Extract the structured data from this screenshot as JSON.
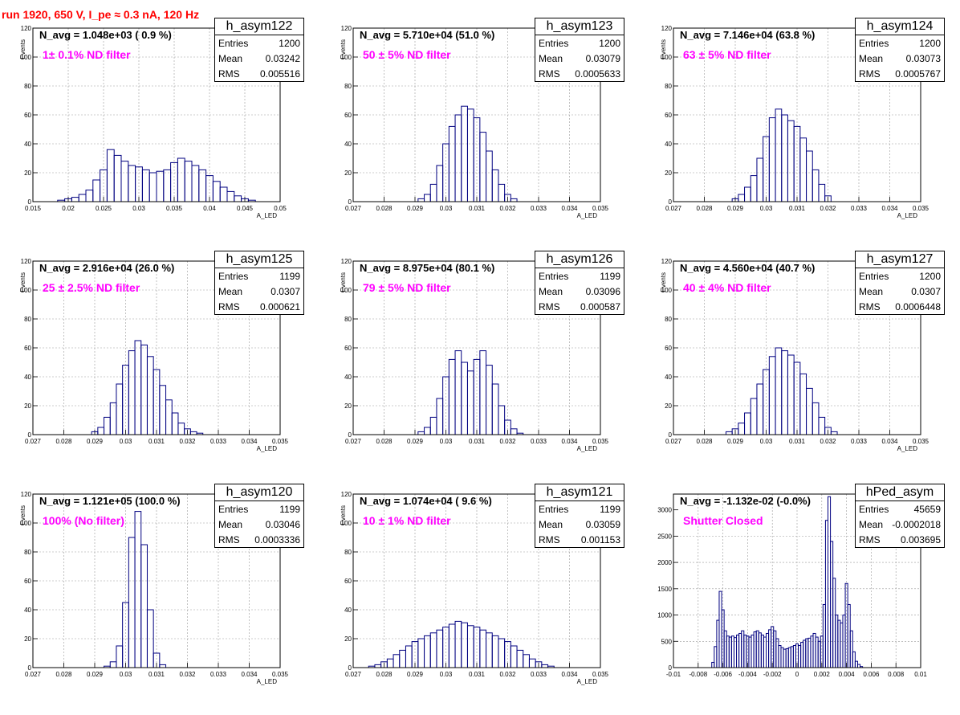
{
  "title": "run 1920,   650 V, I_pe ≈ 0.3 nA, 120 Hz",
  "stat_labels": {
    "entries": "Entries",
    "mean": "Mean",
    "rms": "RMS"
  },
  "colors": {
    "histogram": "#000080",
    "annotation": "#ff00ff",
    "title": "#ff0000",
    "grid": "#999999"
  },
  "panels": [
    {
      "hist_name": "h_asym122",
      "navg": "N_avg = 1.048e+03 ( 0.9 %)",
      "note": "1± 0.1% ND filter",
      "entries": "1200",
      "mean": "0.03242",
      "rms": "0.005516",
      "chart_data": {
        "type": "histogram",
        "title": "h_asym122",
        "xlabel": "A_LED",
        "ylabel": "Events",
        "xlim": [
          0.015,
          0.05
        ],
        "ylim": [
          0,
          120
        ],
        "grid": true,
        "x_ticks": [
          "0.015",
          "0.02",
          "0.025",
          "0.03",
          "0.035",
          "0.04",
          "0.045",
          "0.05"
        ],
        "y_ticks": [
          "0",
          "20",
          "40",
          "60",
          "80",
          "100",
          "120"
        ],
        "bin_centers": [
          0.019,
          0.02,
          0.021,
          0.022,
          0.023,
          0.024,
          0.025,
          0.026,
          0.027,
          0.028,
          0.029,
          0.03,
          0.031,
          0.032,
          0.033,
          0.034,
          0.035,
          0.036,
          0.037,
          0.038,
          0.039,
          0.04,
          0.041,
          0.042,
          0.043,
          0.044,
          0.045,
          0.046
        ],
        "values": [
          1,
          2,
          3,
          5,
          8,
          15,
          22,
          36,
          32,
          28,
          25,
          24,
          22,
          20,
          21,
          22,
          27,
          30,
          28,
          25,
          22,
          18,
          14,
          10,
          7,
          4,
          2,
          1
        ]
      }
    },
    {
      "hist_name": "h_asym123",
      "navg": "N_avg = 5.710e+04 (51.0 %)",
      "note": "50 ± 5% ND filter",
      "entries": "1200",
      "mean": "0.03079",
      "rms": "0.0005633",
      "chart_data": {
        "type": "histogram",
        "title": "h_asym123",
        "xlabel": "A_LED",
        "ylabel": "Events",
        "xlim": [
          0.027,
          0.035
        ],
        "ylim": [
          0,
          120
        ],
        "grid": true,
        "x_ticks": [
          "0.027",
          "0.028",
          "0.029",
          "0.03",
          "0.031",
          "0.032",
          "0.033",
          "0.034",
          "0.035"
        ],
        "y_ticks": [
          "0",
          "20",
          "40",
          "60",
          "80",
          "100",
          "120"
        ],
        "bin_centers": [
          0.0292,
          0.0294,
          0.0296,
          0.0298,
          0.03,
          0.0302,
          0.0304,
          0.0306,
          0.0308,
          0.031,
          0.0312,
          0.0314,
          0.0316,
          0.0318,
          0.032,
          0.0322
        ],
        "values": [
          2,
          5,
          12,
          25,
          40,
          52,
          60,
          66,
          64,
          58,
          48,
          35,
          22,
          12,
          5,
          2
        ]
      }
    },
    {
      "hist_name": "h_asym124",
      "navg": "N_avg = 7.146e+04 (63.8 %)",
      "note": "63 ± 5% ND filter",
      "entries": "1200",
      "mean": "0.03073",
      "rms": "0.0005767",
      "chart_data": {
        "type": "histogram",
        "title": "h_asym124",
        "xlabel": "A_LED",
        "ylabel": "Events",
        "xlim": [
          0.027,
          0.035
        ],
        "ylim": [
          0,
          120
        ],
        "grid": true,
        "x_ticks": [
          "0.027",
          "0.028",
          "0.029",
          "0.03",
          "0.031",
          "0.032",
          "0.033",
          "0.034",
          "0.035"
        ],
        "y_ticks": [
          "0",
          "20",
          "40",
          "60",
          "80",
          "100",
          "120"
        ],
        "bin_centers": [
          0.029,
          0.0292,
          0.0294,
          0.0296,
          0.0298,
          0.03,
          0.0302,
          0.0304,
          0.0306,
          0.0308,
          0.031,
          0.0312,
          0.0314,
          0.0316,
          0.0318,
          0.032
        ],
        "values": [
          2,
          5,
          10,
          18,
          30,
          45,
          58,
          64,
          60,
          56,
          52,
          44,
          35,
          22,
          12,
          4
        ]
      }
    },
    {
      "hist_name": "h_asym125",
      "navg": "N_avg = 2.916e+04 (26.0 %)",
      "note": "25 ± 2.5% ND filter",
      "entries": "1199",
      "mean": "0.0307",
      "rms": "0.000621",
      "chart_data": {
        "type": "histogram",
        "title": "h_asym125",
        "xlabel": "A_LED",
        "ylabel": "Events",
        "xlim": [
          0.027,
          0.035
        ],
        "ylim": [
          0,
          120
        ],
        "grid": true,
        "x_ticks": [
          "0.027",
          "0.028",
          "0.029",
          "0.03",
          "0.031",
          "0.032",
          "0.033",
          "0.034",
          "0.035"
        ],
        "y_ticks": [
          "0",
          "20",
          "40",
          "60",
          "80",
          "100",
          "120"
        ],
        "bin_centers": [
          0.029,
          0.0292,
          0.0294,
          0.0296,
          0.0298,
          0.03,
          0.0302,
          0.0304,
          0.0306,
          0.0308,
          0.031,
          0.0312,
          0.0314,
          0.0316,
          0.0318,
          0.032,
          0.0322,
          0.0324
        ],
        "values": [
          2,
          5,
          12,
          22,
          35,
          48,
          58,
          65,
          62,
          54,
          45,
          34,
          24,
          15,
          8,
          4,
          2,
          1
        ]
      }
    },
    {
      "hist_name": "h_asym126",
      "navg": "N_avg = 8.975e+04 (80.1 %)",
      "note": "79 ± 5% ND filter",
      "entries": "1199",
      "mean": "0.03096",
      "rms": "0.000587",
      "chart_data": {
        "type": "histogram",
        "title": "h_asym126",
        "xlabel": "A_LED",
        "ylabel": "Events",
        "xlim": [
          0.027,
          0.035
        ],
        "ylim": [
          0,
          120
        ],
        "grid": true,
        "x_ticks": [
          "0.027",
          "0.028",
          "0.029",
          "0.03",
          "0.031",
          "0.032",
          "0.033",
          "0.034",
          "0.035"
        ],
        "y_ticks": [
          "0",
          "20",
          "40",
          "60",
          "80",
          "100",
          "120"
        ],
        "bin_centers": [
          0.0292,
          0.0294,
          0.0296,
          0.0298,
          0.03,
          0.0302,
          0.0304,
          0.0306,
          0.0308,
          0.031,
          0.0312,
          0.0314,
          0.0316,
          0.0318,
          0.032,
          0.0322,
          0.0324
        ],
        "values": [
          2,
          5,
          12,
          25,
          40,
          52,
          58,
          50,
          44,
          52,
          58,
          48,
          35,
          20,
          10,
          4,
          1
        ]
      }
    },
    {
      "hist_name": "h_asym127",
      "navg": "N_avg = 4.560e+04 (40.7 %)",
      "note": "40 ± 4% ND filter",
      "entries": "1200",
      "mean": "0.0307",
      "rms": "0.0006448",
      "chart_data": {
        "type": "histogram",
        "title": "h_asym127",
        "xlabel": "A_LED",
        "ylabel": "Events",
        "xlim": [
          0.027,
          0.035
        ],
        "ylim": [
          0,
          120
        ],
        "grid": true,
        "x_ticks": [
          "0.027",
          "0.028",
          "0.029",
          "0.03",
          "0.031",
          "0.032",
          "0.033",
          "0.034",
          "0.035"
        ],
        "y_ticks": [
          "0",
          "20",
          "40",
          "60",
          "80",
          "100",
          "120"
        ],
        "bin_centers": [
          0.0288,
          0.029,
          0.0292,
          0.0294,
          0.0296,
          0.0298,
          0.03,
          0.0302,
          0.0304,
          0.0306,
          0.0308,
          0.031,
          0.0312,
          0.0314,
          0.0316,
          0.0318,
          0.032,
          0.0322
        ],
        "values": [
          2,
          4,
          8,
          15,
          25,
          35,
          45,
          54,
          60,
          58,
          55,
          50,
          42,
          32,
          22,
          12,
          5,
          2
        ]
      }
    },
    {
      "hist_name": "h_asym120",
      "navg": "N_avg = 1.121e+05 (100.0 %)",
      "note": "100% (No filter)",
      "entries": "1199",
      "mean": "0.03046",
      "rms": "0.0003336",
      "chart_data": {
        "type": "histogram",
        "title": "h_asym120",
        "xlabel": "A_LED",
        "ylabel": "Events",
        "xlim": [
          0.027,
          0.035
        ],
        "ylim": [
          0,
          120
        ],
        "grid": true,
        "x_ticks": [
          "0.027",
          "0.028",
          "0.029",
          "0.03",
          "0.031",
          "0.032",
          "0.033",
          "0.034",
          "0.035"
        ],
        "y_ticks": [
          "0",
          "20",
          "40",
          "60",
          "80",
          "100",
          "120"
        ],
        "bin_centers": [
          0.0294,
          0.0296,
          0.0298,
          0.03,
          0.0302,
          0.0304,
          0.0306,
          0.0308,
          0.031,
          0.0312
        ],
        "values": [
          1,
          4,
          15,
          45,
          90,
          108,
          85,
          40,
          10,
          2
        ]
      }
    },
    {
      "hist_name": "h_asym121",
      "navg": "N_avg = 1.074e+04 ( 9.6 %)",
      "note": "10 ± 1% ND filter",
      "entries": "1199",
      "mean": "0.03059",
      "rms": "0.001153",
      "chart_data": {
        "type": "histogram",
        "title": "h_asym121",
        "xlabel": "A_LED",
        "ylabel": "Events",
        "xlim": [
          0.027,
          0.035
        ],
        "ylim": [
          0,
          120
        ],
        "grid": true,
        "x_ticks": [
          "0.027",
          "0.028",
          "0.029",
          "0.03",
          "0.031",
          "0.032",
          "0.033",
          "0.034",
          "0.035"
        ],
        "y_ticks": [
          "0",
          "20",
          "40",
          "60",
          "80",
          "100",
          "120"
        ],
        "bin_centers": [
          0.0276,
          0.0278,
          0.028,
          0.0282,
          0.0284,
          0.0286,
          0.0288,
          0.029,
          0.0292,
          0.0294,
          0.0296,
          0.0298,
          0.03,
          0.0302,
          0.0304,
          0.0306,
          0.0308,
          0.031,
          0.0312,
          0.0314,
          0.0316,
          0.0318,
          0.032,
          0.0322,
          0.0324,
          0.0326,
          0.0328,
          0.033,
          0.0332,
          0.0334
        ],
        "values": [
          1,
          2,
          4,
          6,
          9,
          12,
          15,
          18,
          20,
          22,
          24,
          26,
          28,
          30,
          32,
          31,
          29,
          28,
          26,
          24,
          22,
          20,
          18,
          15,
          12,
          9,
          6,
          4,
          2,
          1
        ]
      }
    },
    {
      "hist_name": "hPed_asym",
      "navg": "N_avg = -1.132e-02 (-0.0%)",
      "note": "Shutter Closed",
      "entries": "45659",
      "mean": "-0.0002018",
      "rms": "0.003695",
      "chart_data": {
        "type": "histogram",
        "title": "hPed_asym",
        "xlabel": "",
        "ylabel": "",
        "xlim": [
          -0.01,
          0.01
        ],
        "ylim": [
          0,
          3300
        ],
        "grid": true,
        "x_ticks": [
          "-0.01",
          "-0.008",
          "-0.006",
          "-0.004",
          "-0.002",
          "0",
          "0.002",
          "0.004",
          "0.006",
          "0.008",
          "0.01"
        ],
        "y_ticks": [
          "0",
          "500",
          "1000",
          "1500",
          "2000",
          "2500",
          "3000"
        ],
        "bin_centers": [
          -0.0068,
          -0.0066,
          -0.0064,
          -0.0062,
          -0.006,
          -0.0058,
          -0.0056,
          -0.0054,
          -0.0052,
          -0.005,
          -0.0048,
          -0.0046,
          -0.0044,
          -0.0042,
          -0.004,
          -0.0038,
          -0.0036,
          -0.0034,
          -0.0032,
          -0.003,
          -0.0028,
          -0.0026,
          -0.0024,
          -0.0022,
          -0.002,
          -0.0018,
          -0.0016,
          -0.0014,
          -0.0012,
          -0.001,
          -0.0008,
          -0.0006,
          -0.0004,
          -0.0002,
          0.0,
          0.0002,
          0.0004,
          0.0006,
          0.0008,
          0.001,
          0.0012,
          0.0014,
          0.0016,
          0.0018,
          0.002,
          0.0022,
          0.0024,
          0.0026,
          0.0028,
          0.003,
          0.0032,
          0.0034,
          0.0036,
          0.0038,
          0.004,
          0.0042,
          0.0044,
          0.0046,
          0.0048,
          0.005,
          0.0052
        ],
        "values": [
          100,
          400,
          900,
          1450,
          1100,
          700,
          600,
          580,
          600,
          570,
          620,
          650,
          700,
          620,
          600,
          580,
          620,
          680,
          700,
          660,
          620,
          580,
          650,
          720,
          780,
          700,
          550,
          420,
          380,
          350,
          360,
          380,
          400,
          420,
          450,
          420,
          480,
          520,
          550,
          560,
          600,
          650,
          580,
          500,
          600,
          1200,
          2800,
          3250,
          2400,
          1700,
          1000,
          900,
          850,
          1000,
          1600,
          1200,
          700,
          300,
          120,
          60,
          20
        ]
      }
    }
  ]
}
